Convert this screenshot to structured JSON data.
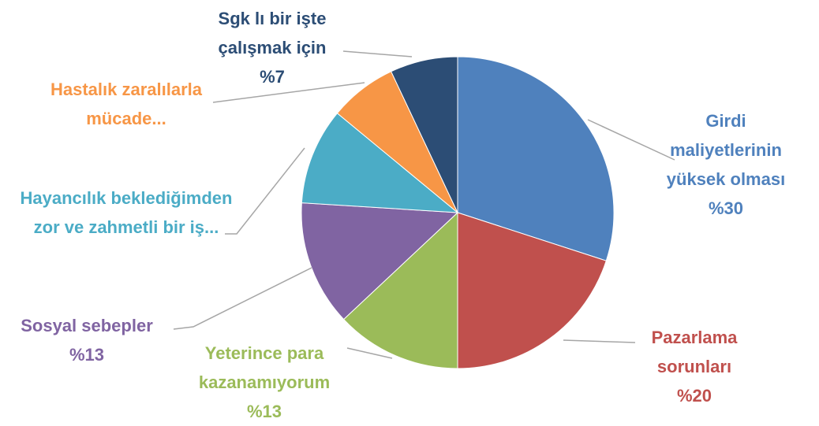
{
  "chart_data": {
    "type": "pie",
    "categories": [
      "Girdi maliyetlerinin yüksek olması",
      "Pazarlama sorunları",
      "Yeterince para kazanamıyorum",
      "Sosyal sebepler",
      "Hayancılık beklediğimden zor ve zahmetli bir iş...",
      "Hastalık zaralılarla mücade...",
      "Sgk lı bir işte çalışmak için"
    ],
    "values": [
      30,
      20,
      13,
      13,
      10,
      7,
      7
    ],
    "value_labels": [
      "%30",
      "%20",
      "%13",
      "%13",
      null,
      null,
      "%7"
    ],
    "colors": [
      "#4f81bd",
      "#c0504d",
      "#9bbb59",
      "#8064a2",
      "#4bacc6",
      "#f79646",
      "#2c4d75"
    ]
  }
}
